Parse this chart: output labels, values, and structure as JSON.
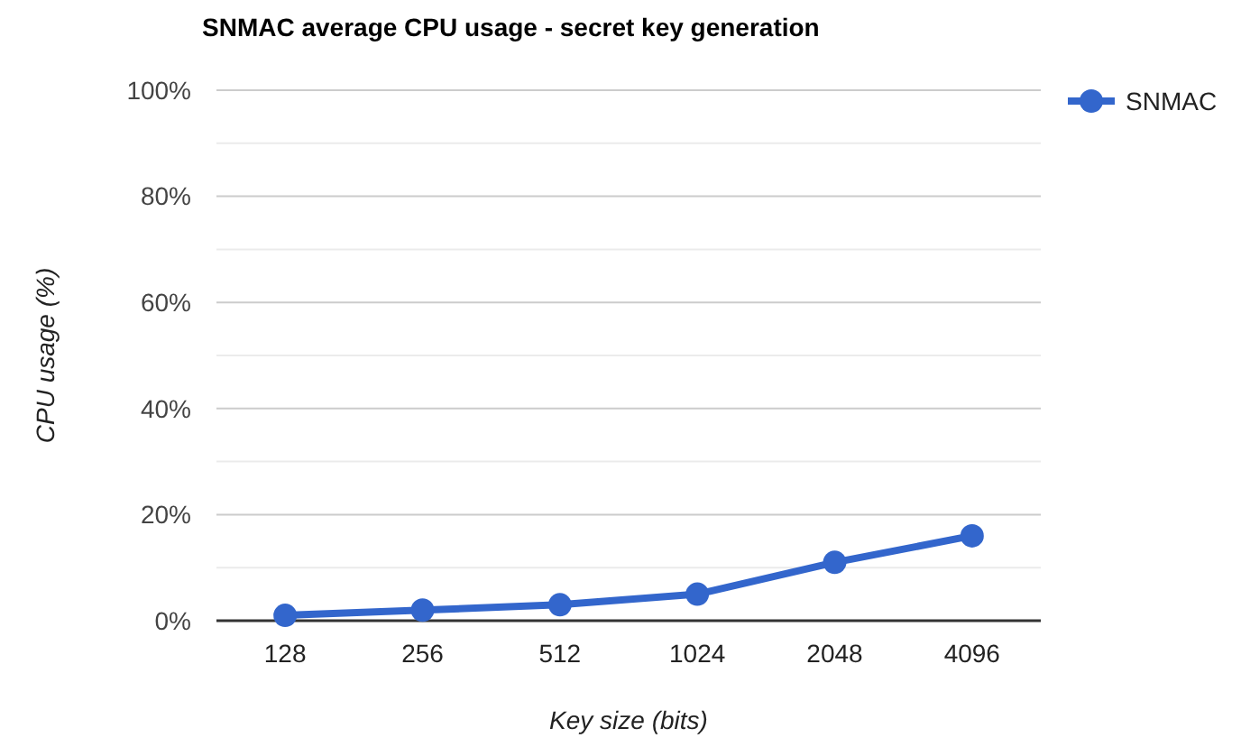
{
  "chart_data": {
    "type": "line",
    "title": "SNMAC average CPU usage - secret key generation",
    "xlabel": "Key size (bits)",
    "ylabel": "CPU usage (%)",
    "categories": [
      "128",
      "256",
      "512",
      "1024",
      "2048",
      "4096"
    ],
    "series": [
      {
        "name": "SNMAC",
        "color": "#3366cc",
        "values": [
          1,
          2,
          3,
          5,
          11,
          16
        ]
      }
    ],
    "ylim": [
      0,
      100
    ],
    "yticks": [
      {
        "value": 0,
        "label": "0%"
      },
      {
        "value": 10,
        "label": null
      },
      {
        "value": 20,
        "label": "20%"
      },
      {
        "value": 30,
        "label": null
      },
      {
        "value": 40,
        "label": "40%"
      },
      {
        "value": 50,
        "label": null
      },
      {
        "value": 60,
        "label": "60%"
      },
      {
        "value": 70,
        "label": null
      },
      {
        "value": 80,
        "label": "80%"
      },
      {
        "value": 90,
        "label": null
      },
      {
        "value": 100,
        "label": "100%"
      }
    ],
    "grid": "y",
    "legend": "top right",
    "marker": "circle",
    "line_style": "solid"
  }
}
